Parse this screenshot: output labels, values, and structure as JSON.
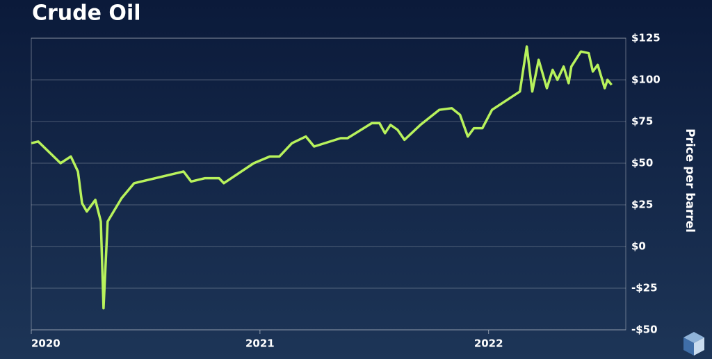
{
  "chart_data": {
    "type": "line",
    "title": "Crude Oil",
    "y_label": "Price per barrel",
    "x": [
      2020.0,
      2020.03,
      2020.128,
      2020.173,
      2020.204,
      2020.222,
      2020.243,
      2020.28,
      2020.304,
      2020.316,
      2020.334,
      2020.395,
      2020.45,
      2020.666,
      2020.699,
      2020.76,
      2020.821,
      2020.842,
      2020.973,
      2021.043,
      2021.085,
      2021.14,
      2021.201,
      2021.237,
      2021.353,
      2021.383,
      2021.489,
      2021.523,
      2021.547,
      2021.571,
      2021.602,
      2021.632,
      2021.702,
      2021.784,
      2021.839,
      2021.875,
      2021.909,
      2021.936,
      2021.973,
      2022.015,
      2022.137,
      2022.167,
      2022.191,
      2022.219,
      2022.255,
      2022.28,
      2022.301,
      2022.328,
      2022.35,
      2022.362,
      2022.404,
      2022.438,
      2022.456,
      2022.477,
      2022.508,
      2022.52,
      2022.538
    ],
    "series": [
      {
        "name": "Crude Oil",
        "color": "#b8f25c",
        "values": [
          62,
          63,
          50,
          54,
          45,
          26,
          21,
          28,
          15,
          -37,
          15,
          29,
          38,
          45,
          39,
          41,
          41,
          38,
          50,
          54,
          54,
          62,
          66,
          60,
          65,
          65,
          74,
          74,
          68,
          73,
          70,
          64,
          73,
          82,
          83,
          79,
          66,
          71,
          71,
          82,
          93,
          120,
          93,
          112,
          95,
          106,
          100,
          108,
          98,
          108,
          117,
          116,
          105,
          109,
          95,
          100,
          97
        ]
      }
    ],
    "xlim": [
      2020,
      2022.6
    ],
    "xticks": [
      2020,
      2021,
      2022
    ],
    "ylim": [
      -50,
      125
    ],
    "yticks": [
      {
        "value": -50,
        "label": "-$50"
      },
      {
        "value": -25,
        "label": "-$25"
      },
      {
        "value": 0,
        "label": "$0"
      },
      {
        "value": 25,
        "label": "$25"
      },
      {
        "value": 50,
        "label": "$50"
      },
      {
        "value": 75,
        "label": "$75"
      },
      {
        "value": 100,
        "label": "$100"
      },
      {
        "value": 125,
        "label": "$125"
      }
    ],
    "grid": true
  }
}
